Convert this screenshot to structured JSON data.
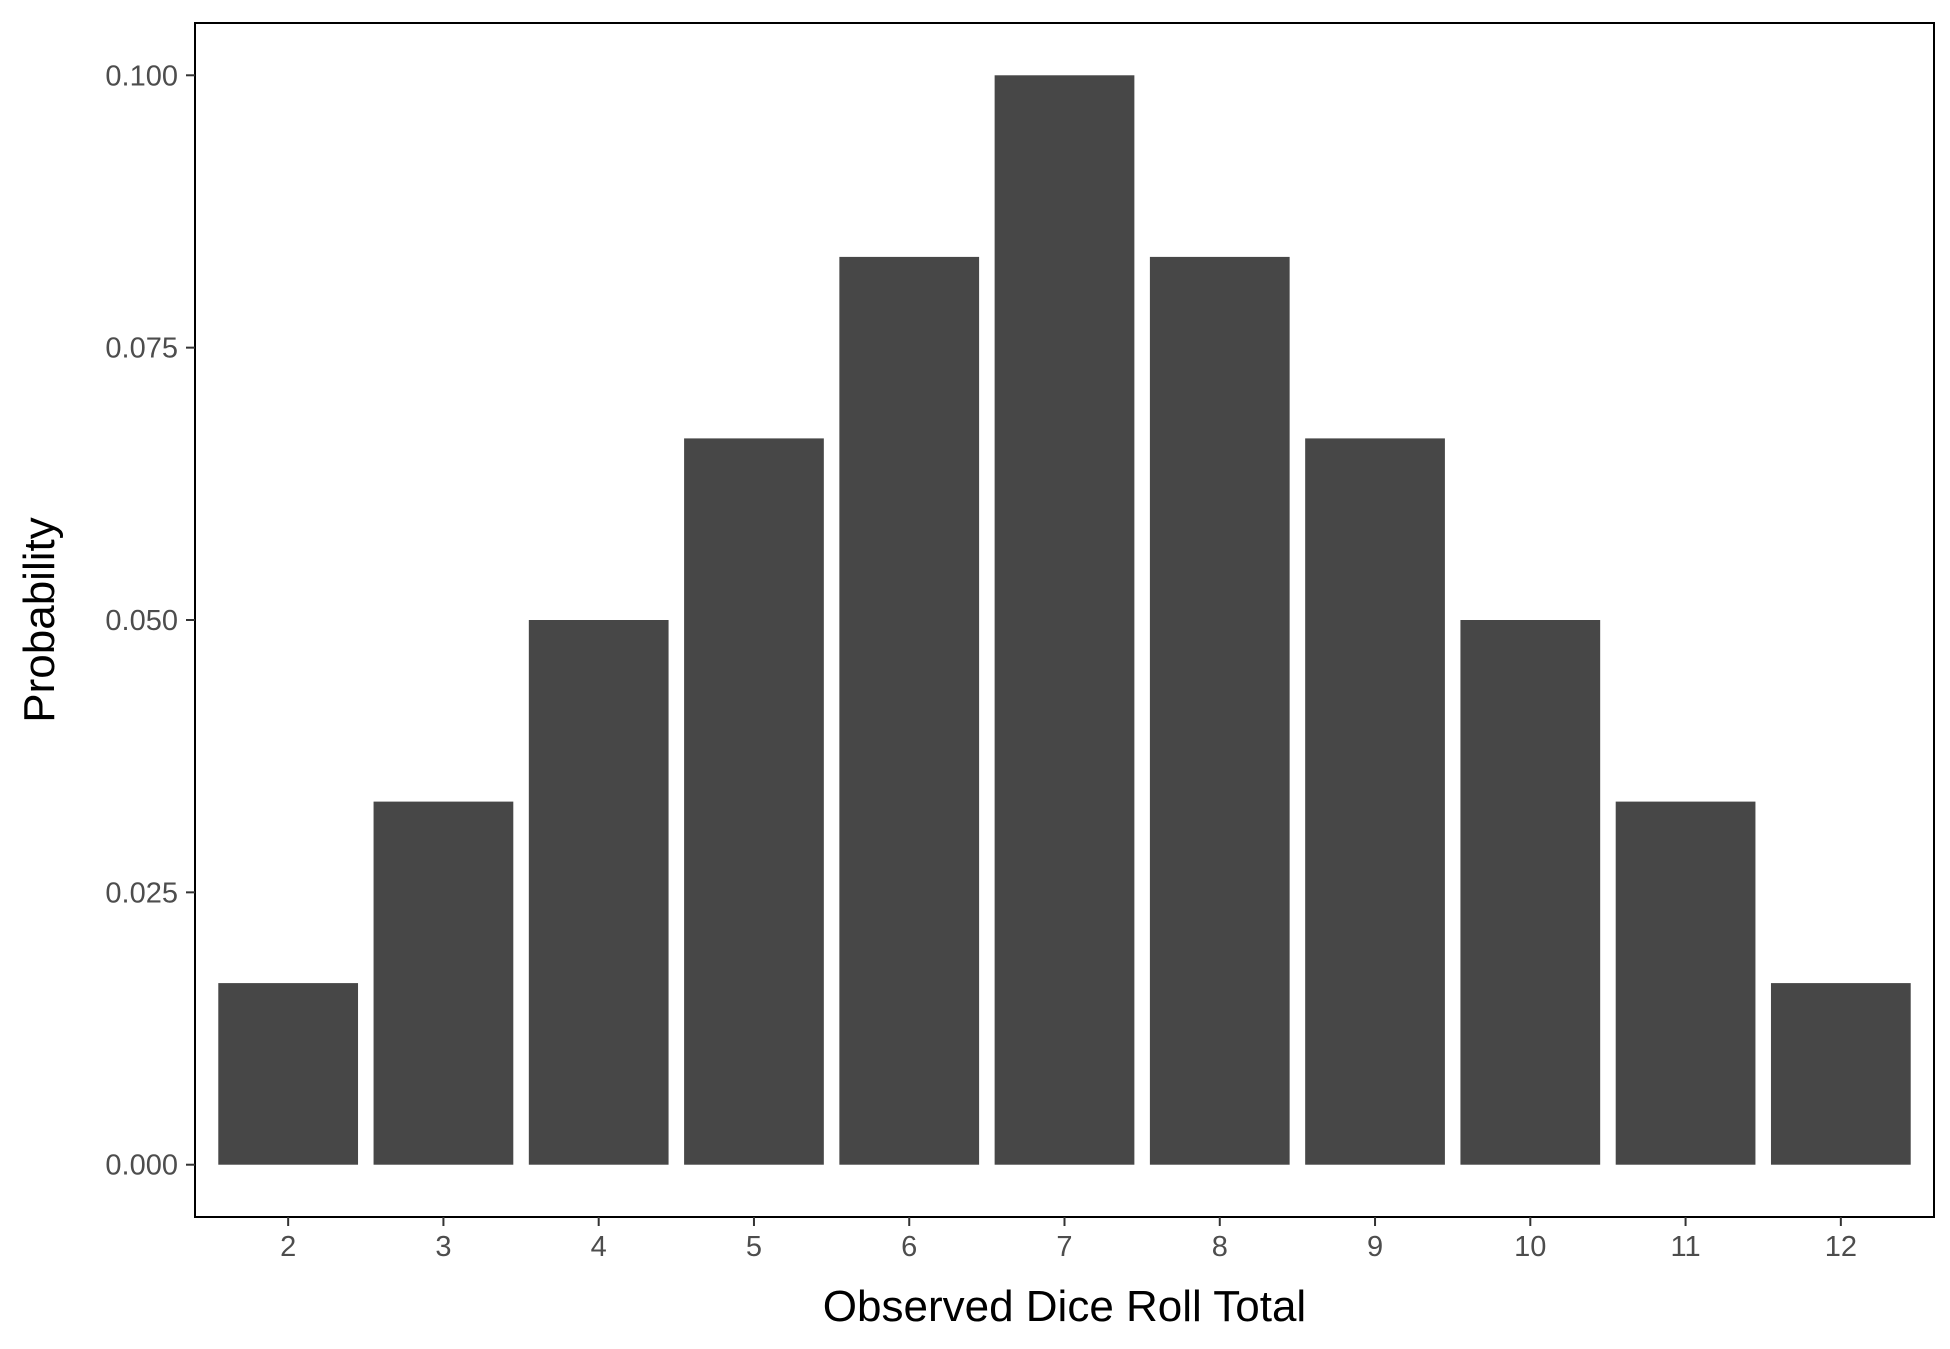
{
  "chart_data": {
    "type": "bar",
    "title": "",
    "xlabel": "Observed Dice Roll Total",
    "ylabel": "Probability",
    "categories": [
      "2",
      "3",
      "4",
      "5",
      "6",
      "7",
      "8",
      "9",
      "10",
      "11",
      "12"
    ],
    "values": [
      0.01667,
      0.03333,
      0.05,
      0.06667,
      0.08333,
      0.1,
      0.08333,
      0.06667,
      0.05,
      0.03333,
      0.01667
    ],
    "y_ticks": [
      "0.000",
      "0.025",
      "0.050",
      "0.075",
      "0.100"
    ],
    "ylim": [
      -0.0048,
      0.1048
    ],
    "grid": false,
    "legend": "none",
    "colors": {
      "bar": "#474747",
      "panel_border": "#000000",
      "background": "#ffffff",
      "tick_text": "#4d4d4d",
      "axis_title": "#000000"
    }
  }
}
